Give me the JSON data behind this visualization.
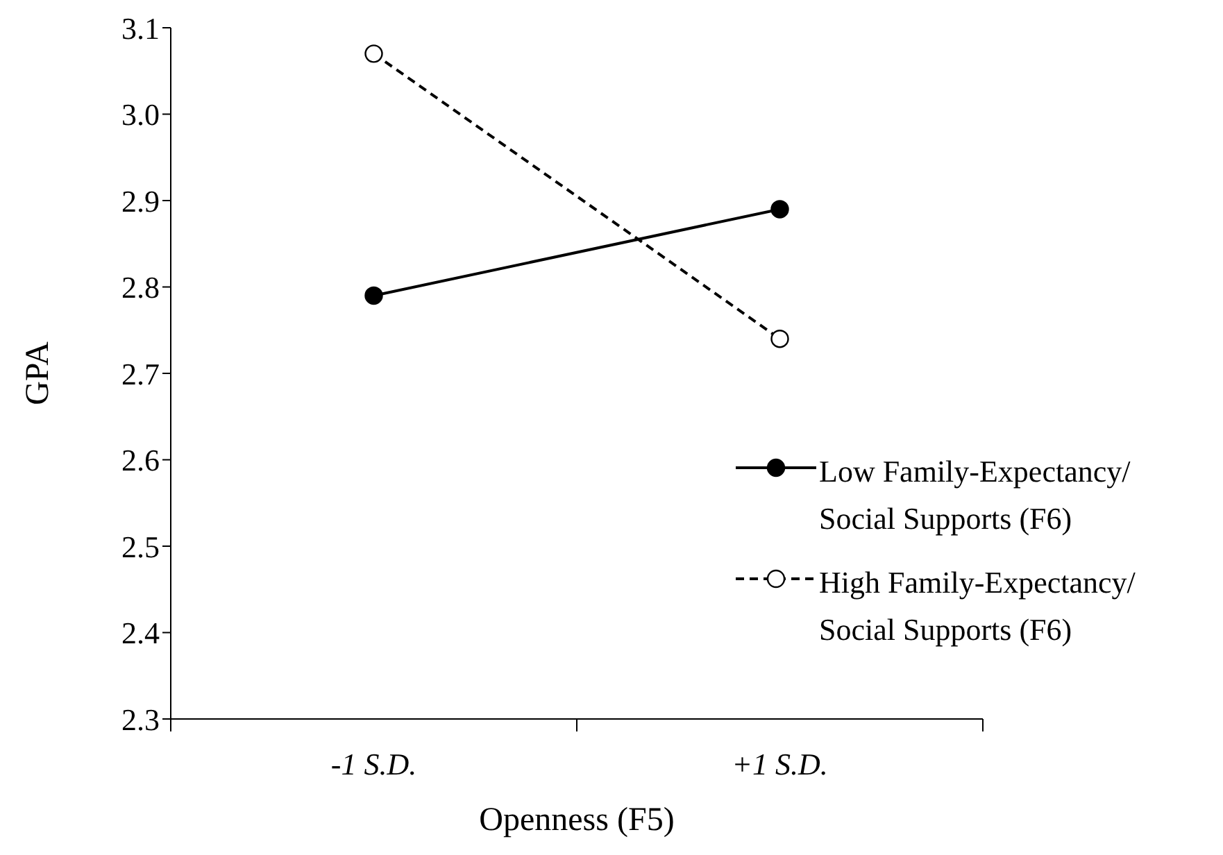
{
  "chart_data": {
    "type": "line",
    "xlabel": "Openness (F5)",
    "ylabel": "GPA",
    "categories": [
      "-1 S.D.",
      "+1 S.D."
    ],
    "series": [
      {
        "name": "Low Family-Expectancy/ Social Supports (F6)",
        "color": "#000000",
        "values": [
          2.79,
          2.89
        ],
        "line_style": "solid",
        "marker": "circle"
      },
      {
        "name": "High Family-Expectancy/ Social Supports (F6)",
        "color": "#000000",
        "values": [
          3.07,
          2.74
        ],
        "line_style": "dashed",
        "marker": "circle"
      }
    ],
    "ylim": [
      2.3,
      3.1
    ],
    "yticks": [
      {
        "value": 2.3,
        "label": "2.3"
      },
      {
        "value": 2.4,
        "label": "2.4"
      },
      {
        "value": 2.5,
        "label": "2.5"
      },
      {
        "value": 2.6,
        "label": "2.6"
      },
      {
        "value": 2.7,
        "label": "2.7"
      },
      {
        "value": 2.8,
        "label": "2.8"
      },
      {
        "value": 2.9,
        "label": "2.9"
      },
      {
        "value": 3.0,
        "label": "3.0"
      },
      {
        "value": 3.1,
        "label": "3.1"
      }
    ],
    "grid": false,
    "legend": "right"
  }
}
